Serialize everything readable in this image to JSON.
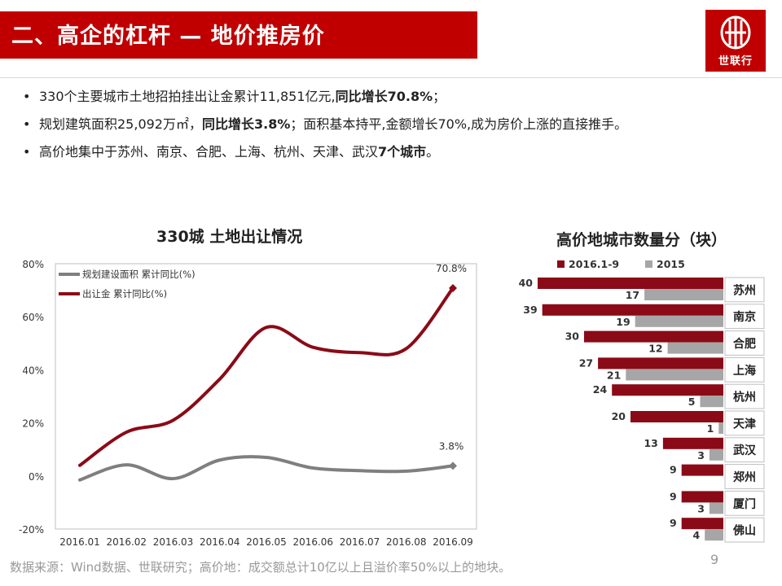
{
  "header": {
    "title": "二、高企的杠杆 — 地价推房价",
    "logo_text": "世联行"
  },
  "bullets": [
    {
      "text": "330个主要城市土地招拍挂出让金累计11,851亿元,",
      "bold": "同比增长70.8%",
      "tail": "；"
    },
    {
      "text": "规划建筑面积25,092万㎡，",
      "bold": "同比增长3.8%",
      "tail": "；面积基本持平,金额增长70%,成为房价上涨的直接推手。"
    },
    {
      "text": "高价地集中于苏州、南京、合肥、上海、杭州、天津、武汉",
      "bold": "7个城市",
      "tail": "。"
    }
  ],
  "footer": {
    "source": "数据来源：Wind数据、世联研究；高价地：成交额总计10亿以上且溢价率50%以上的地块。",
    "page": "9"
  },
  "colors": {
    "accent": "#c00000",
    "dark_red": "#8b0a17",
    "gray": "#7f7f7f"
  },
  "chart_data": [
    {
      "type": "line",
      "title": "330城 土地出让情况",
      "x": [
        "2016.01",
        "2016.02",
        "2016.03",
        "2016.04",
        "2016.05",
        "2016.06",
        "2016.07",
        "2016.08",
        "2016.09"
      ],
      "y_ticks": [
        "80%",
        "60%",
        "40%",
        "20%",
        "0%",
        "-20%"
      ],
      "ylim": [
        -20,
        80
      ],
      "legend_position": "top-left",
      "series": [
        {
          "name": "规划建设面积 累计同比(%)",
          "color": "#7f7f7f",
          "values": [
            -1.5,
            4.2,
            -1.0,
            6.0,
            7.0,
            3.0,
            2.0,
            1.8,
            3.8
          ],
          "end_label": "3.8%"
        },
        {
          "name": "出让金 累计同比(%)",
          "color": "#8b0a17",
          "values": [
            4.0,
            16.5,
            21.0,
            36.5,
            56.0,
            48.5,
            46.5,
            48.0,
            70.8
          ],
          "end_label": "70.8%"
        }
      ]
    },
    {
      "type": "bar",
      "orientation": "horizontal",
      "title": "高价地城市数量分（块）",
      "legend_position": "top",
      "categories": [
        "苏州",
        "南京",
        "合肥",
        "上海",
        "杭州",
        "天津",
        "武汉",
        "郑州",
        "厦门",
        "佛山"
      ],
      "series": [
        {
          "name": "2016.1-9",
          "color": "#8b0a17",
          "values": [
            40,
            39,
            30,
            27,
            24,
            20,
            13,
            9,
            9,
            9
          ]
        },
        {
          "name": "2015",
          "color": "#a6a6a6",
          "values": [
            17,
            19,
            12,
            21,
            5,
            1,
            3,
            null,
            3,
            4
          ]
        }
      ],
      "xlim": [
        0,
        40
      ]
    }
  ]
}
